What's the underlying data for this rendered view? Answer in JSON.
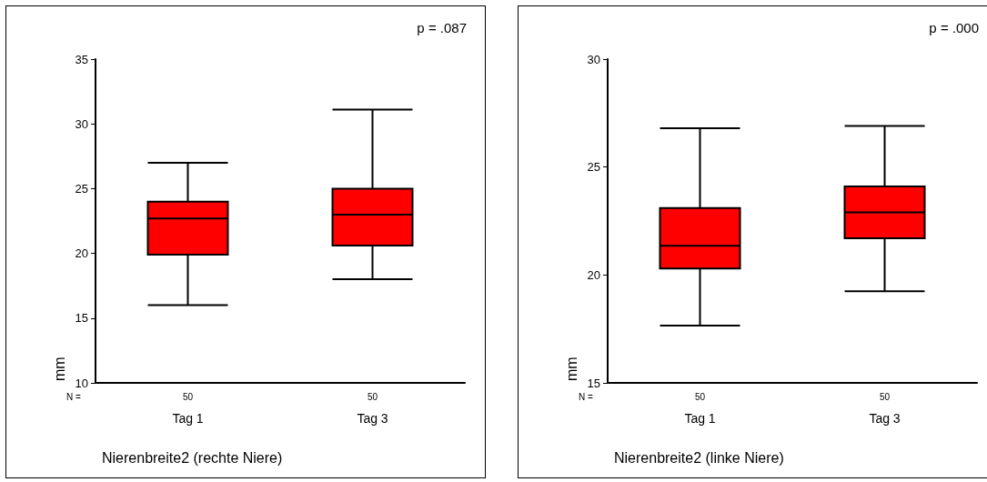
{
  "chart_data": [
    {
      "type": "box",
      "title": "Nierenbreite2 (rechte Niere)",
      "ylabel": "mm",
      "categories": [
        "Tag 1",
        "Tag 3"
      ],
      "color": "#ff0000",
      "boxes": [
        {
          "low": 16.0,
          "q1": 19.9,
          "median": 22.7,
          "q3": 24.0,
          "high": 27.0
        },
        {
          "low": 18.0,
          "q1": 20.6,
          "median": 23.0,
          "q3": 25.0,
          "high": 31.1
        }
      ],
      "ylim": [
        10,
        35
      ],
      "yticks": [
        10,
        15,
        20,
        25,
        30,
        35
      ],
      "annotations": [
        "p = .087",
        "N =",
        "50",
        "50"
      ]
    },
    {
      "type": "box",
      "title": "Nierenbreite2 (linke Niere)",
      "ylabel": "mm",
      "categories": [
        "Tag 1",
        "Tag 3"
      ],
      "color": "#ff0000",
      "boxes": [
        {
          "low": 17.65,
          "q1": 20.3,
          "median": 21.35,
          "q3": 23.1,
          "high": 26.8
        },
        {
          "low": 19.25,
          "q1": 21.7,
          "median": 22.9,
          "q3": 24.1,
          "high": 26.9
        }
      ],
      "ylim": [
        15,
        30
      ],
      "yticks": [
        15,
        20,
        25,
        30
      ],
      "annotations": [
        "p = .000",
        "N =",
        "50",
        "50"
      ]
    }
  ]
}
